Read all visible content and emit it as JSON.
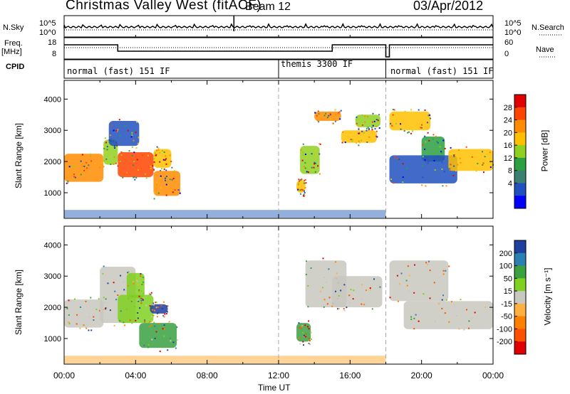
{
  "header": {
    "title": "Christmas Valley West (fitACF)",
    "beam": "Beam 12",
    "date": "03/Apr/2012"
  },
  "side_labels": {
    "nsky": "N.Sky",
    "freq": "Freq.",
    "freq_unit": "[MHz]",
    "cpid": "CPID",
    "nsearch": "N.Search",
    "nave": "Nave"
  },
  "top_axes": {
    "nsky_ticks": [
      "10^5",
      "10^0"
    ],
    "nsearch_ticks": [
      "10^5",
      "10^0"
    ],
    "freq_ticks": [
      "18",
      "8"
    ],
    "nave_ticks": [
      "60",
      "0"
    ]
  },
  "cpid_segments": [
    {
      "label": "normal (fast) 151 IF",
      "start_h": 0.0
    },
    {
      "label": "themis 3300 IF",
      "start_h": 12.0
    },
    {
      "label": "normal (fast) 151 IF",
      "start_h": 18.0
    }
  ],
  "panels": {
    "power": {
      "ylabel": "Slant Range [km]",
      "cbar_label": "Power [dB]"
    },
    "velocity": {
      "ylabel": "Slant Range [km]",
      "cbar_label": "Velocity [m s⁻¹]"
    }
  },
  "xaxis": {
    "label": "Time UT",
    "ticks": [
      "00:00",
      "04:00",
      "08:00",
      "12:00",
      "16:00",
      "20:00",
      "00:00"
    ]
  },
  "chart_data": {
    "type": "heatmap",
    "x_range_hours": [
      0,
      24
    ],
    "y_range_km": [
      180,
      4600
    ],
    "y_ticks": [
      1000,
      2000,
      3000,
      4000
    ],
    "power_colorbar": {
      "ticks": [
        "28",
        "24",
        "20",
        "16",
        "12",
        "8",
        "4"
      ],
      "colors": [
        "#e00000",
        "#ff4400",
        "#ff8c00",
        "#ffc000",
        "#90d020",
        "#2aa040",
        "#3a8070",
        "#2050c0",
        "#0000ff"
      ]
    },
    "velocity_colorbar": {
      "ticks": [
        "200",
        "100",
        "50",
        "15",
        "-15",
        "-50",
        "-100",
        "-200"
      ],
      "colors": [
        "#2040a0",
        "#2a80b0",
        "#3aa040",
        "#80d020",
        "#c8c8c0",
        "#ffb040",
        "#ff8000",
        "#ff5000",
        "#e00000"
      ]
    },
    "power_regions": [
      {
        "t0": 0.0,
        "t1": 2.2,
        "r0": 1350,
        "r1": 2250,
        "level": 6
      },
      {
        "t0": 2.2,
        "t1": 3.0,
        "r0": 1900,
        "r1": 2700,
        "level": 4
      },
      {
        "t0": 3.0,
        "t1": 5.0,
        "r0": 1500,
        "r1": 2300,
        "level": 7
      },
      {
        "t0": 2.5,
        "t1": 4.2,
        "r0": 2500,
        "r1": 3300,
        "level": 1
      },
      {
        "t0": 5.0,
        "t1": 6.0,
        "r0": 1800,
        "r1": 2400,
        "level": 5
      },
      {
        "t0": 5.0,
        "t1": 6.5,
        "r0": 900,
        "r1": 1700,
        "level": 6
      },
      {
        "t0": 13.2,
        "t1": 14.3,
        "r0": 1600,
        "r1": 2500,
        "level": 4
      },
      {
        "t0": 13.0,
        "t1": 13.5,
        "r0": 1000,
        "r1": 1400,
        "level": 5
      },
      {
        "t0": 14.0,
        "t1": 15.5,
        "r0": 3300,
        "r1": 3600,
        "level": 6
      },
      {
        "t0": 15.5,
        "t1": 17.5,
        "r0": 2600,
        "r1": 3000,
        "level": 5
      },
      {
        "t0": 16.3,
        "t1": 17.7,
        "r0": 3100,
        "r1": 3500,
        "level": 4
      },
      {
        "t0": 18.2,
        "t1": 20.5,
        "r0": 3000,
        "r1": 3600,
        "level": 5
      },
      {
        "t0": 20.0,
        "t1": 21.3,
        "r0": 2000,
        "r1": 2800,
        "level": 3
      },
      {
        "t0": 18.2,
        "t1": 22.0,
        "r0": 1300,
        "r1": 2200,
        "level": 1
      },
      {
        "t0": 21.5,
        "t1": 24.0,
        "r0": 1700,
        "r1": 2400,
        "level": 5
      }
    ],
    "velocity_regions": [
      {
        "t0": 0.0,
        "t1": 2.2,
        "r0": 1350,
        "r1": 2250,
        "level": 4
      },
      {
        "t0": 2.0,
        "t1": 4.0,
        "r0": 1500,
        "r1": 3300,
        "level": 4
      },
      {
        "t0": 3.0,
        "t1": 5.0,
        "r0": 1500,
        "r1": 2400,
        "level": 5
      },
      {
        "t0": 4.2,
        "t1": 6.3,
        "r0": 700,
        "r1": 1500,
        "level": 6
      },
      {
        "t0": 4.8,
        "t1": 5.8,
        "r0": 1800,
        "r1": 2100,
        "level": 8
      },
      {
        "t0": 3.5,
        "t1": 4.5,
        "r0": 2300,
        "r1": 3100,
        "level": 5
      },
      {
        "t0": 13.0,
        "t1": 13.8,
        "r0": 900,
        "r1": 1500,
        "level": 6
      },
      {
        "t0": 13.5,
        "t1": 15.8,
        "r0": 2000,
        "r1": 3500,
        "level": 4
      },
      {
        "t0": 15.0,
        "t1": 17.8,
        "r0": 2000,
        "r1": 3000,
        "level": 4
      },
      {
        "t0": 18.2,
        "t1": 21.5,
        "r0": 2200,
        "r1": 3500,
        "level": 4
      },
      {
        "t0": 19.0,
        "t1": 24.0,
        "r0": 1300,
        "r1": 2200,
        "level": 4
      }
    ],
    "ground_band": {
      "t0": 0.0,
      "t1": 18.0,
      "r0": 200,
      "r1": 450
    }
  }
}
